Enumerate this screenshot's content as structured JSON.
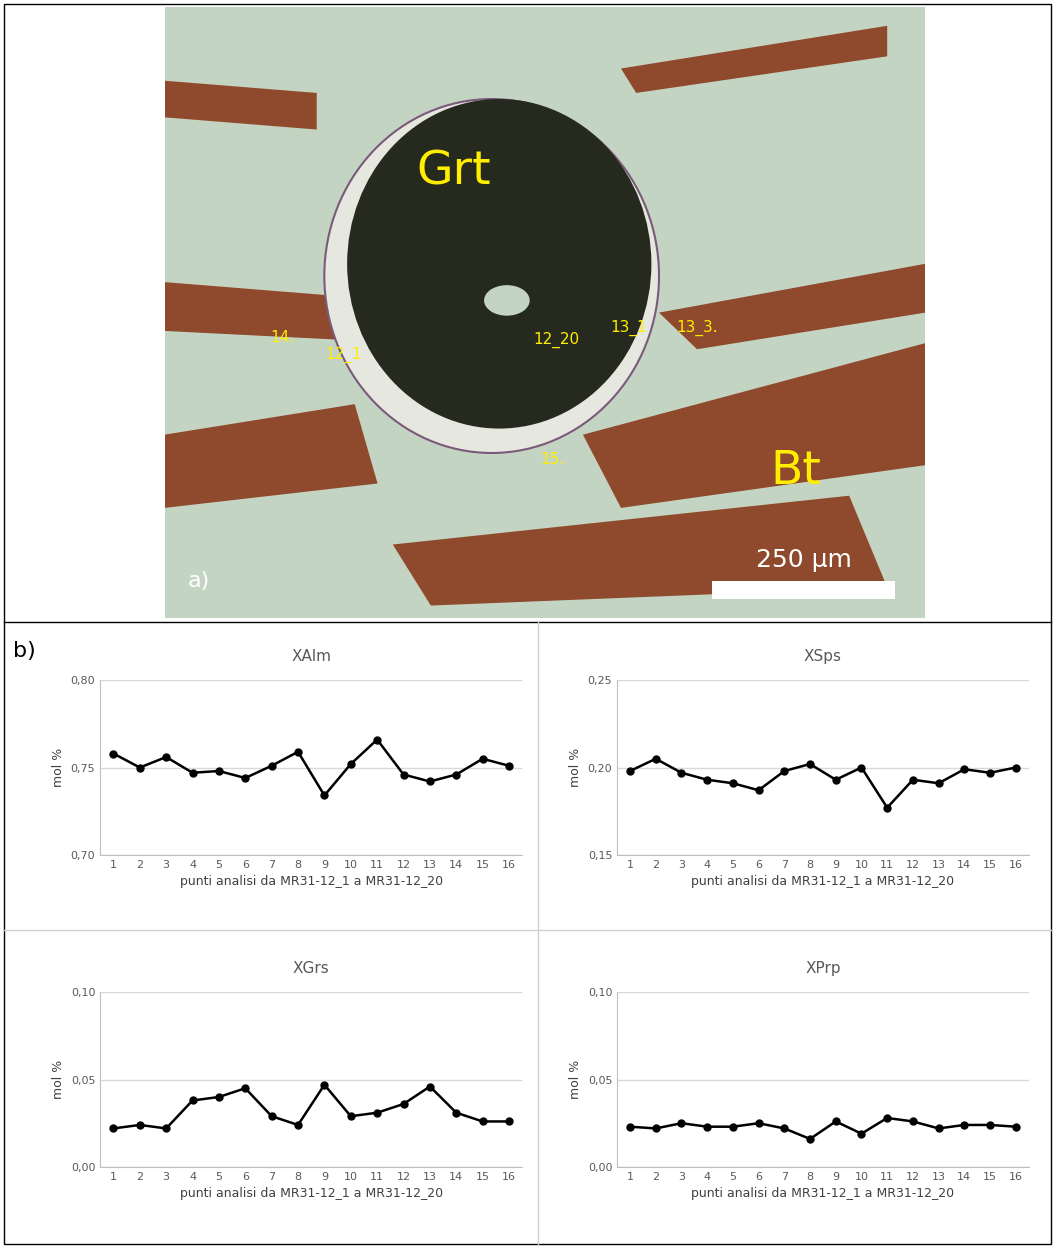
{
  "panel_labels": [
    "a)",
    "b)"
  ],
  "image": {
    "labels": [
      "Grt",
      "Bt",
      "14.",
      "12_1",
      "12_20",
      "13_1",
      "13_3.",
      "15."
    ],
    "scale_bar": "250 µm"
  },
  "chart_data": [
    {
      "type": "line",
      "title": "XAlm",
      "xlabel": "punti analisi da MR31-12_1 a MR31-12_20",
      "ylabel": "mol %",
      "x": [
        1,
        2,
        3,
        4,
        5,
        6,
        7,
        8,
        9,
        10,
        11,
        12,
        13,
        14,
        15,
        16
      ],
      "values": [
        0.758,
        0.75,
        0.756,
        0.747,
        0.748,
        0.744,
        0.751,
        0.759,
        0.734,
        0.752,
        0.766,
        0.746,
        0.742,
        0.746,
        0.755,
        0.751
      ],
      "xlim": [
        0.5,
        16.5
      ],
      "xticks": [
        1,
        2,
        3,
        4,
        5,
        6,
        7,
        8,
        9,
        10,
        11,
        12,
        13,
        14,
        15,
        16
      ],
      "ylim": [
        0.7,
        0.8
      ],
      "yticks": [
        {
          "value": 0.7,
          "label": "0,70"
        },
        {
          "value": 0.75,
          "label": "0,75"
        },
        {
          "value": 0.8,
          "label": "0,80"
        }
      ],
      "color": "#000000",
      "marker": "o",
      "grid": true
    },
    {
      "type": "line",
      "title": "XSps",
      "xlabel": "punti analisi da MR31-12_1 a MR31-12_20",
      "ylabel": "mol %",
      "x": [
        1,
        2,
        3,
        4,
        5,
        6,
        7,
        8,
        9,
        10,
        11,
        12,
        13,
        14,
        15,
        16
      ],
      "values": [
        0.198,
        0.205,
        0.197,
        0.193,
        0.191,
        0.187,
        0.198,
        0.202,
        0.193,
        0.2,
        0.177,
        0.193,
        0.191,
        0.199,
        0.197,
        0.2
      ],
      "xlim": [
        0.5,
        16.5
      ],
      "xticks": [
        1,
        2,
        3,
        4,
        5,
        6,
        7,
        8,
        9,
        10,
        11,
        12,
        13,
        14,
        15,
        16
      ],
      "ylim": [
        0.15,
        0.25
      ],
      "yticks": [
        {
          "value": 0.15,
          "label": "0,15"
        },
        {
          "value": 0.2,
          "label": "0,20"
        },
        {
          "value": 0.25,
          "label": "0,25"
        }
      ],
      "color": "#000000",
      "marker": "o",
      "grid": true
    },
    {
      "type": "line",
      "title": "XGrs",
      "xlabel": "punti analisi da MR31-12_1 a MR31-12_20",
      "ylabel": "mol %",
      "x": [
        1,
        2,
        3,
        4,
        5,
        6,
        7,
        8,
        9,
        10,
        11,
        12,
        13,
        14,
        15,
        16
      ],
      "values": [
        0.022,
        0.024,
        0.022,
        0.038,
        0.04,
        0.045,
        0.029,
        0.024,
        0.047,
        0.029,
        0.031,
        0.036,
        0.046,
        0.031,
        0.026,
        0.026
      ],
      "xlim": [
        0.5,
        16.5
      ],
      "xticks": [
        1,
        2,
        3,
        4,
        5,
        6,
        7,
        8,
        9,
        10,
        11,
        12,
        13,
        14,
        15,
        16
      ],
      "ylim": [
        0.0,
        0.1
      ],
      "yticks": [
        {
          "value": 0.0,
          "label": "0,00"
        },
        {
          "value": 0.05,
          "label": "0,05"
        },
        {
          "value": 0.1,
          "label": "0,10"
        }
      ],
      "color": "#000000",
      "marker": "o",
      "grid": true
    },
    {
      "type": "line",
      "title": "XPrp",
      "xlabel": "punti analisi da MR31-12_1 a MR31-12_20",
      "ylabel": "mol %",
      "x": [
        1,
        2,
        3,
        4,
        5,
        6,
        7,
        8,
        9,
        10,
        11,
        12,
        13,
        14,
        15,
        16
      ],
      "values": [
        0.023,
        0.022,
        0.025,
        0.023,
        0.023,
        0.025,
        0.022,
        0.016,
        0.026,
        0.019,
        0.028,
        0.026,
        0.022,
        0.024,
        0.024,
        0.023
      ],
      "xlim": [
        0.5,
        16.5
      ],
      "xticks": [
        1,
        2,
        3,
        4,
        5,
        6,
        7,
        8,
        9,
        10,
        11,
        12,
        13,
        14,
        15,
        16
      ],
      "ylim": [
        0.0,
        0.1
      ],
      "yticks": [
        {
          "value": 0.0,
          "label": "0,00"
        },
        {
          "value": 0.05,
          "label": "0,05"
        },
        {
          "value": 0.1,
          "label": "0,10"
        }
      ],
      "color": "#000000",
      "marker": "o",
      "grid": true
    }
  ]
}
